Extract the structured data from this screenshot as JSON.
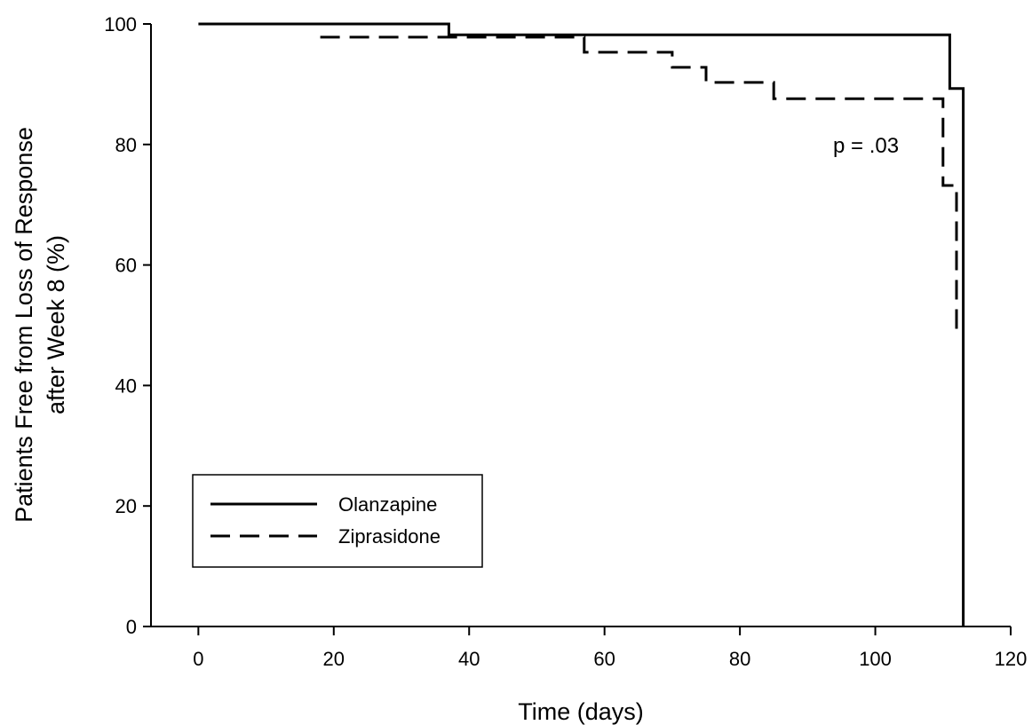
{
  "chart_data": {
    "type": "line",
    "subtype": "kaplan-meier step",
    "title": "",
    "xlabel": "Time (days)",
    "ylabel_line1": "Patients Free from Loss of Response",
    "ylabel_line2": "after Week 8 (%)",
    "xlim": [
      -7,
      120
    ],
    "ylim": [
      0,
      100
    ],
    "xticks": [
      0,
      20,
      40,
      60,
      80,
      100,
      120
    ],
    "yticks": [
      0,
      20,
      40,
      60,
      80,
      100
    ],
    "grid": false,
    "legend_position": "bottom-left",
    "annotation": "p = .03",
    "series": [
      {
        "name": "Olanzapine",
        "style": "solid",
        "color": "#000000",
        "points": [
          [
            0,
            100
          ],
          [
            37,
            100
          ],
          [
            37,
            98.2
          ],
          [
            111,
            98.2
          ],
          [
            111,
            89.3
          ],
          [
            113,
            89.3
          ],
          [
            113,
            0
          ]
        ]
      },
      {
        "name": "Ziprasidone",
        "style": "dashed",
        "color": "#000000",
        "points": [
          [
            18,
            97.8
          ],
          [
            57,
            97.8
          ],
          [
            57,
            95.3
          ],
          [
            70,
            95.3
          ],
          [
            70,
            92.8
          ],
          [
            75,
            92.8
          ],
          [
            75,
            90.3
          ],
          [
            85,
            90.3
          ],
          [
            85,
            87.6
          ],
          [
            110,
            87.6
          ],
          [
            110,
            73.2
          ],
          [
            112,
            73.2
          ],
          [
            112,
            48.6
          ]
        ]
      }
    ]
  }
}
